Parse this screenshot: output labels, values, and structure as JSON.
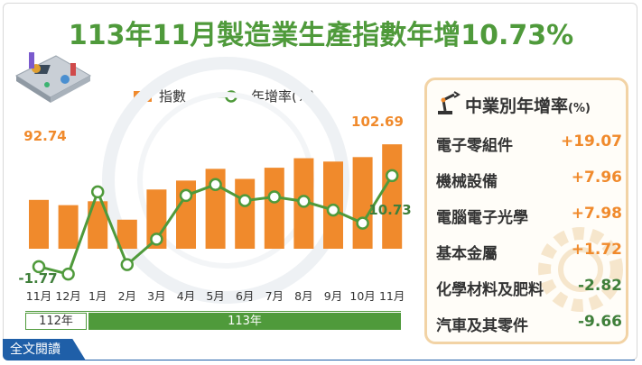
{
  "title": "113年11月製造業生產指數年增10.73%",
  "legend": {
    "bar_label": "指數",
    "line_label": "年增率(%)"
  },
  "year_strip": [
    "112年",
    "113年"
  ],
  "footer": {
    "read_more": "全文閱讀"
  },
  "industry_panel": {
    "title": "中業別年增率",
    "unit": "(%)",
    "items": [
      {
        "name": "電子零組件",
        "value": "+19.07",
        "sign": "pos"
      },
      {
        "name": "機械設備",
        "value": "+7.96",
        "sign": "pos"
      },
      {
        "name": "電腦電子光學",
        "value": "+7.98",
        "sign": "pos"
      },
      {
        "name": "基本金屬",
        "value": "+1.72",
        "sign": "pos"
      },
      {
        "name": "化學材料及肥料",
        "value": "-2.82",
        "sign": "neg"
      },
      {
        "name": "汽車及其零件",
        "value": "-9.66",
        "sign": "neg"
      }
    ]
  },
  "colors": {
    "bar": "#f08a2c",
    "line": "#4f9a3b",
    "title": "#4f9a3b",
    "negative": "#3f7f3a"
  },
  "chart_data": {
    "type": "bar",
    "categories": [
      "11月",
      "12月",
      "1月",
      "2月",
      "3月",
      "4月",
      "5月",
      "6月",
      "7月",
      "8月",
      "9月",
      "10月",
      "11月"
    ],
    "series": [
      {
        "name": "指數",
        "type": "bar",
        "values": [
          92.74,
          91.8,
          92.5,
          89.2,
          94.6,
          96.2,
          98.3,
          96.5,
          98.5,
          100.2,
          99.6,
          100.4,
          102.69
        ]
      },
      {
        "name": "年增率(%)",
        "type": "line",
        "values": [
          -1.77,
          -2.8,
          8.5,
          -1.5,
          2.0,
          8.0,
          9.5,
          7.3,
          7.8,
          7.2,
          6.0,
          4.2,
          10.73
        ]
      }
    ],
    "data_labels": [
      {
        "series": 0,
        "index": 0,
        "text": "92.74"
      },
      {
        "series": 0,
        "index": 12,
        "text": "102.69"
      },
      {
        "series": 1,
        "index": 0,
        "text": "-1.77"
      },
      {
        "series": 1,
        "index": 12,
        "text": "10.73"
      }
    ],
    "bar_range": [
      84,
      104
    ],
    "line_range": [
      -6,
      20
    ],
    "grid": false,
    "legend": "top-left"
  }
}
